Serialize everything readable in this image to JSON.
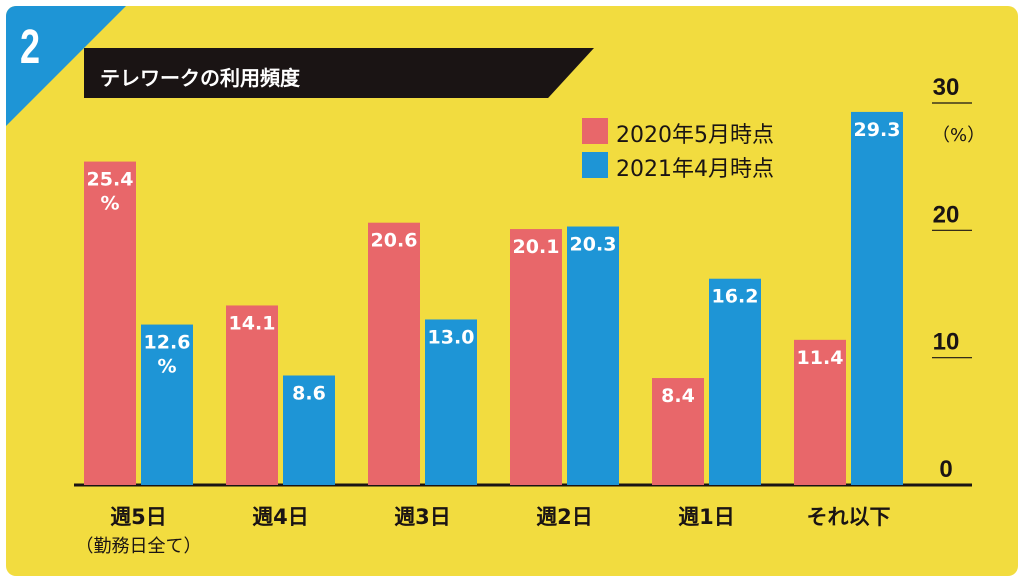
{
  "figure_number": "2",
  "chart_data": {
    "type": "bar",
    "title": "テレワークの利用頻度",
    "categories": [
      "週5日",
      "週4日",
      "週3日",
      "週2日",
      "週1日",
      "それ以下"
    ],
    "category_sublabels": [
      "（勤務日全て）",
      "",
      "",
      "",
      "",
      ""
    ],
    "series": [
      {
        "name": "2020年5月時点",
        "values": [
          25.4,
          14.1,
          20.6,
          20.1,
          8.4,
          11.4
        ],
        "color": "#e8676a"
      },
      {
        "name": "2021年4月時点",
        "values": [
          12.6,
          8.6,
          13.0,
          20.3,
          16.2,
          29.3
        ],
        "color": "#1e95d6"
      }
    ],
    "value_labels": [
      [
        "25.4",
        "14.1",
        "20.6",
        "20.1",
        "8.4",
        "11.4"
      ],
      [
        "12.6",
        "8.6",
        "13.0",
        "20.3",
        "16.2",
        "29.3"
      ]
    ],
    "percent_suffix": "%",
    "ylim": [
      0,
      30
    ],
    "yticks": [
      "0",
      "10",
      "20",
      "30"
    ],
    "unit_label": "（%）",
    "legend_position": "top-right",
    "grid": false
  }
}
